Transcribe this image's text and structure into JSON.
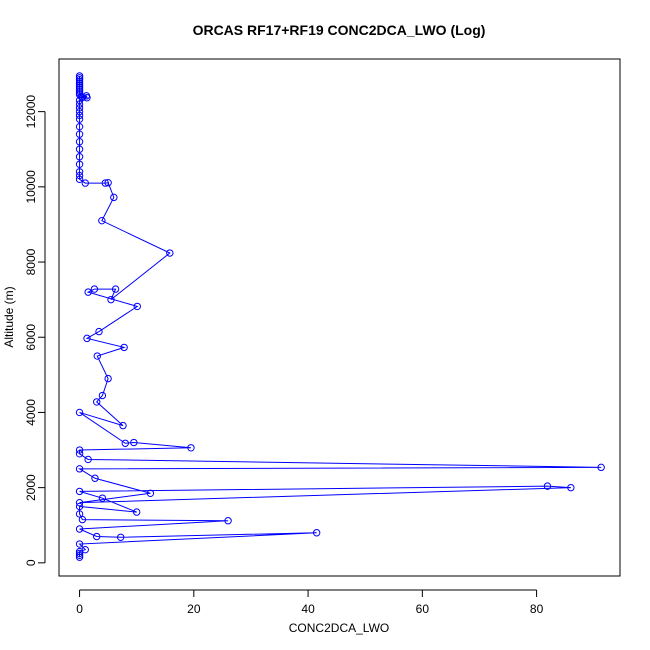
{
  "chart_data": {
    "type": "line",
    "title": "ORCAS RF17+RF19 CONC2DCA_LWO (Log)",
    "xlabel": "CONC2DCA_LWO",
    "ylabel": "Altitude (m)",
    "xlim": [
      -3.6,
      94.6
    ],
    "ylim": [
      -350,
      13400
    ],
    "xticks": [
      0,
      20,
      40,
      60,
      80
    ],
    "yticks": [
      0,
      2000,
      4000,
      6000,
      8000,
      10000,
      12000
    ],
    "grid": false,
    "colors": {
      "series": "#0000ff",
      "axis": "#000000"
    },
    "series": [
      {
        "name": "",
        "points": [
          [
            0,
            12950
          ],
          [
            0,
            12900
          ],
          [
            0,
            12850
          ],
          [
            0,
            12800
          ],
          [
            0,
            12750
          ],
          [
            0,
            12700
          ],
          [
            0,
            12650
          ],
          [
            0,
            12600
          ],
          [
            0,
            12550
          ],
          [
            0,
            12500
          ],
          [
            0,
            12450
          ],
          [
            0.3,
            12400
          ],
          [
            1.2,
            12420
          ],
          [
            1.3,
            12370
          ],
          [
            0.5,
            12380
          ],
          [
            0,
            12300
          ],
          [
            0,
            12200
          ],
          [
            0,
            12100
          ],
          [
            0,
            12000
          ],
          [
            0,
            11900
          ],
          [
            0,
            11800
          ],
          [
            0,
            11600
          ],
          [
            0,
            11400
          ],
          [
            0,
            11200
          ],
          [
            0,
            11000
          ],
          [
            0,
            10800
          ],
          [
            0,
            10600
          ],
          [
            0,
            10400
          ],
          [
            0,
            10300
          ],
          [
            0,
            10200
          ],
          [
            1,
            10100
          ],
          [
            4.5,
            10100
          ],
          [
            5,
            10110
          ],
          [
            6,
            9720
          ],
          [
            3.9,
            9100
          ],
          [
            15.8,
            8240
          ],
          [
            5.5,
            7000
          ],
          [
            6.3,
            7280
          ],
          [
            2.6,
            7280
          ],
          [
            1.5,
            7200
          ],
          [
            10.1,
            6820
          ],
          [
            3.4,
            6150
          ],
          [
            1.3,
            5970
          ],
          [
            7.8,
            5730
          ],
          [
            3.1,
            5500
          ],
          [
            5,
            4900
          ],
          [
            4,
            4450
          ],
          [
            3,
            4280
          ],
          [
            7.6,
            3650
          ],
          [
            0,
            4000
          ],
          [
            8,
            3180
          ],
          [
            9.5,
            3200
          ],
          [
            19.5,
            3060
          ],
          [
            0,
            3000
          ],
          [
            0,
            2900
          ],
          [
            1.5,
            2750
          ],
          [
            91.3,
            2540
          ],
          [
            0,
            2500
          ],
          [
            2.7,
            2250
          ],
          [
            12.4,
            1850
          ],
          [
            0,
            1600
          ],
          [
            86,
            2000
          ],
          [
            81.9,
            2040
          ],
          [
            0,
            1900
          ],
          [
            4,
            1720
          ],
          [
            10,
            1350
          ],
          [
            0,
            1500
          ],
          [
            0,
            1300
          ],
          [
            0.5,
            1150
          ],
          [
            26,
            1120
          ],
          [
            0,
            900
          ],
          [
            3,
            700
          ],
          [
            7.2,
            680
          ],
          [
            41.5,
            800
          ],
          [
            0,
            500
          ],
          [
            1,
            350
          ],
          [
            0,
            300
          ],
          [
            0,
            250
          ],
          [
            0,
            200
          ],
          [
            0,
            150
          ]
        ]
      }
    ]
  }
}
